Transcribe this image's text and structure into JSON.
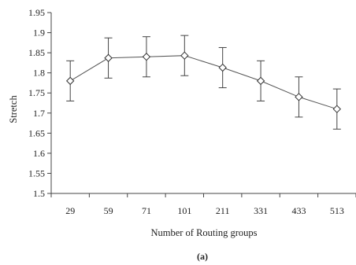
{
  "chart_data": {
    "type": "line",
    "categories": [
      "29",
      "59",
      "71",
      "101",
      "211",
      "331",
      "433",
      "513"
    ],
    "series": [
      {
        "values": [
          1.78,
          1.837,
          1.84,
          1.843,
          1.813,
          1.78,
          1.74,
          1.71
        ],
        "error": [
          0.05,
          0.05,
          0.05,
          0.05,
          0.05,
          0.05,
          0.05,
          0.05
        ]
      }
    ],
    "ylim": [
      1.5,
      1.95
    ],
    "yticks": [
      "1.5",
      "1.55",
      "1.6",
      "1.65",
      "1.7",
      "1.75",
      "1.8",
      "1.85",
      "1.9",
      "1.95"
    ],
    "xlabel": "Number of Routing groups",
    "ylabel": "Stretch",
    "caption": "(a)",
    "grid": false,
    "marker": "diamond",
    "colors": {
      "line": "#555555",
      "marker": "#333333",
      "axis": "#444444"
    }
  }
}
